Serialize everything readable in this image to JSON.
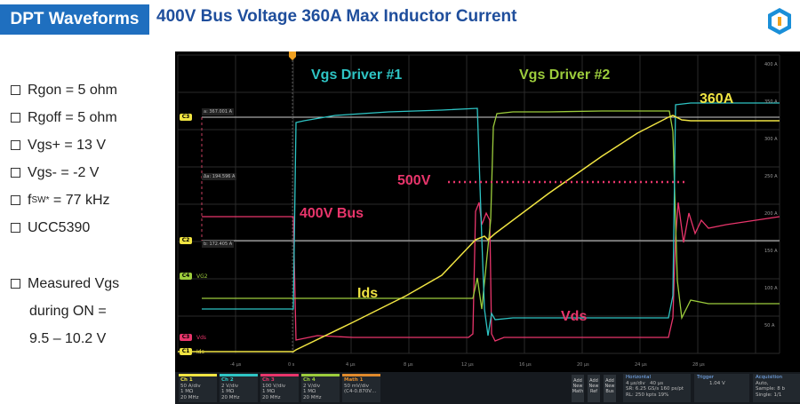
{
  "header": {
    "tag": "DPT Waveforms",
    "title": "400V Bus Voltage 360A Max Inductor Current"
  },
  "bullets": {
    "rgon": "Rgon = 5 ohm",
    "rgoff": "Rgoff = 5 ohm",
    "vgs_plus": "Vgs+ = 13 V",
    "vgs_minus": "Vgs- = -2 V",
    "fsw_prefix": "f",
    "fsw_sub": "SW",
    "fsw_sup": "*",
    "fsw_value": " = 77 kHz",
    "driver": "UCC5390",
    "measured_1": "Measured Vgs",
    "measured_2": "during ON =",
    "measured_3": "9.5 – 10.2 V"
  },
  "overlay": {
    "vgs1": "Vgs Driver #1",
    "vgs2": "Vgs Driver #2",
    "i360": "360A",
    "v500": "500V",
    "v400": "400V Bus",
    "ids": "Ids",
    "vds": "Vds"
  },
  "scope": {
    "cursor_a": "a: 367.001 A",
    "cursor_delta": "Δa: 194.596 A",
    "cursor_b": "b: 172.405 A",
    "ch_markers": {
      "c3": "C3",
      "c2": "C2",
      "c1": "C1",
      "c4": "C4"
    },
    "ch_names": {
      "vg2": "VG2",
      "vds": "Vds",
      "ids": "Ids"
    },
    "time_ticks": [
      "-4 μs",
      "0 s",
      "4 μs",
      "8 μs",
      "12 μs",
      "16 μs",
      "20 μs",
      "24 μs",
      "28 μs"
    ],
    "right_ticks": [
      "400 A",
      "350 A",
      "300 A",
      "250 A",
      "200 A",
      "150 A",
      "100 A",
      "50 A"
    ],
    "channels": [
      {
        "name": "Ch 1",
        "l1": "50 A/div",
        "l2": "1 MΩ",
        "l3": "20 MHz"
      },
      {
        "name": "Ch 2",
        "l1": "2 V/div",
        "l2": "1 MΩ",
        "l3": "20 MHz"
      },
      {
        "name": "Ch 3",
        "l1": "100 V/div",
        "l2": "1 MΩ",
        "l3": "20 MHz"
      },
      {
        "name": "Ch 4",
        "l1": "2 V/div",
        "l2": "1 MΩ",
        "l3": "20 MHz"
      },
      {
        "name": "Math 1",
        "l1": "50 mV/div",
        "l2": "(C4-0.870V…",
        "l3": ""
      }
    ],
    "add_buttons": [
      {
        "l1": "Add",
        "l2": "New",
        "l3": "Math"
      },
      {
        "l1": "Add",
        "l2": "New",
        "l3": "Ref"
      },
      {
        "l1": "Add",
        "l2": "New",
        "l3": "Bus"
      }
    ],
    "horizontal": {
      "title": "Horizontal",
      "l1": "4 μs/div",
      "l1b": "40 μs",
      "l2": "SR: 6.25 GS/s",
      "l2b": "160 ps/pt",
      "l3": "RL: 250 kpts",
      "l3b": "19%"
    },
    "trigger": {
      "title": "Trigger",
      "l1": "1.04 V"
    },
    "acquisition": {
      "title": "Acquisition",
      "l1": "Auto,",
      "l2": "Sample: 8 b",
      "l3": "Single: 1/1"
    }
  },
  "colors": {
    "header_bg": "#1f6fbf",
    "title": "#1f4e9c",
    "ch1": "#f0e442",
    "ch2": "#2ec4c4",
    "ch3": "#e8356b",
    "ch4": "#9ccc3c"
  }
}
